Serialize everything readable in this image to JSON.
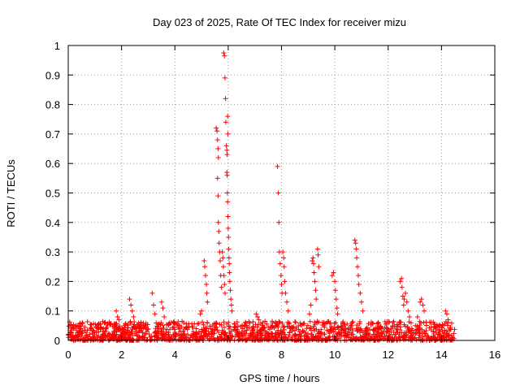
{
  "chart_data": {
    "type": "scatter",
    "title": "Day 023 of 2025, Rate Of TEC Index for receiver mizu",
    "xlabel": "GPS time / hours",
    "ylabel": "ROTI / TECUs",
    "xlim": [
      0,
      16
    ],
    "ylim": [
      0,
      1
    ],
    "x_ticks": [
      0,
      2,
      4,
      6,
      8,
      10,
      12,
      14,
      16
    ],
    "x_tick_labels": [
      "0",
      "2",
      "4",
      "6",
      "8",
      "10",
      "12",
      "14",
      "16"
    ],
    "y_ticks": [
      0,
      0.1,
      0.2,
      0.3,
      0.4,
      0.5,
      0.6,
      0.7,
      0.8,
      0.9,
      1
    ],
    "y_tick_labels": [
      "0",
      "0.1",
      "0.2",
      "0.3",
      "0.4",
      "0.5",
      "0.6",
      "0.7",
      "0.8",
      "0.9",
      "1"
    ],
    "grid": true,
    "marker": "+",
    "marker_color": "#ff0000",
    "data_extent_hours": [
      0,
      14.5
    ],
    "series": [
      {
        "name": "ROTI",
        "points": [
          [
            5.55,
            0.72
          ],
          [
            5.58,
            0.71
          ],
          [
            5.6,
            0.68
          ],
          [
            5.62,
            0.65
          ],
          [
            5.63,
            0.62
          ],
          [
            5.6,
            0.55
          ],
          [
            5.62,
            0.49
          ],
          [
            5.63,
            0.4
          ],
          [
            5.65,
            0.37
          ],
          [
            5.66,
            0.33
          ],
          [
            5.68,
            0.3
          ],
          [
            5.7,
            0.27
          ],
          [
            5.72,
            0.22
          ],
          [
            5.75,
            0.18
          ],
          [
            5.83,
            0.975
          ],
          [
            5.86,
            0.965
          ],
          [
            5.88,
            0.89
          ],
          [
            5.9,
            0.82
          ],
          [
            5.91,
            0.74
          ],
          [
            5.93,
            0.66
          ],
          [
            5.95,
            0.645
          ],
          [
            5.96,
            0.63
          ],
          [
            5.98,
            0.76
          ],
          [
            5.99,
            0.7
          ],
          [
            5.95,
            0.57
          ],
          [
            5.96,
            0.56
          ],
          [
            5.97,
            0.5
          ],
          [
            5.98,
            0.47
          ],
          [
            5.99,
            0.42
          ],
          [
            6.0,
            0.38
          ],
          [
            6.01,
            0.35
          ],
          [
            6.02,
            0.31
          ],
          [
            6.03,
            0.28
          ],
          [
            6.04,
            0.26
          ],
          [
            6.05,
            0.23
          ],
          [
            6.06,
            0.2
          ],
          [
            6.08,
            0.17
          ],
          [
            6.1,
            0.14
          ],
          [
            6.12,
            0.12
          ],
          [
            6.14,
            0.1
          ],
          [
            5.78,
            0.3
          ],
          [
            5.8,
            0.28
          ],
          [
            5.82,
            0.25
          ],
          [
            5.84,
            0.22
          ],
          [
            5.86,
            0.19
          ],
          [
            5.88,
            0.16
          ],
          [
            5.1,
            0.27
          ],
          [
            5.12,
            0.25
          ],
          [
            5.15,
            0.22
          ],
          [
            5.18,
            0.19
          ],
          [
            5.2,
            0.16
          ],
          [
            5.22,
            0.13
          ],
          [
            5.0,
            0.1
          ],
          [
            4.95,
            0.09
          ],
          [
            7.85,
            0.59
          ],
          [
            7.88,
            0.5
          ],
          [
            7.9,
            0.4
          ],
          [
            7.92,
            0.3
          ],
          [
            7.95,
            0.26
          ],
          [
            7.98,
            0.22
          ],
          [
            8.0,
            0.19
          ],
          [
            8.02,
            0.16
          ],
          [
            8.05,
            0.3
          ],
          [
            8.08,
            0.28
          ],
          [
            8.1,
            0.25
          ],
          [
            8.12,
            0.2
          ],
          [
            8.15,
            0.16
          ],
          [
            8.2,
            0.13
          ],
          [
            8.25,
            0.1
          ],
          [
            9.15,
            0.27
          ],
          [
            9.18,
            0.28
          ],
          [
            9.2,
            0.26
          ],
          [
            9.22,
            0.23
          ],
          [
            9.25,
            0.2
          ],
          [
            9.28,
            0.17
          ],
          [
            9.3,
            0.14
          ],
          [
            9.35,
            0.31
          ],
          [
            9.37,
            0.29
          ],
          [
            9.4,
            0.25
          ],
          [
            9.1,
            0.12
          ],
          [
            9.05,
            0.09
          ],
          [
            9.9,
            0.22
          ],
          [
            9.95,
            0.23
          ],
          [
            10.0,
            0.2
          ],
          [
            10.02,
            0.17
          ],
          [
            10.05,
            0.14
          ],
          [
            10.08,
            0.11
          ],
          [
            10.1,
            0.09
          ],
          [
            10.75,
            0.34
          ],
          [
            10.78,
            0.33
          ],
          [
            10.8,
            0.31
          ],
          [
            10.82,
            0.28
          ],
          [
            10.85,
            0.25
          ],
          [
            10.88,
            0.22
          ],
          [
            10.9,
            0.19
          ],
          [
            10.95,
            0.16
          ],
          [
            11.0,
            0.13
          ],
          [
            11.05,
            0.1
          ],
          [
            12.45,
            0.2
          ],
          [
            12.5,
            0.21
          ],
          [
            12.52,
            0.18
          ],
          [
            12.55,
            0.15
          ],
          [
            12.58,
            0.12
          ],
          [
            12.6,
            0.14
          ],
          [
            12.65,
            0.16
          ],
          [
            12.7,
            0.13
          ],
          [
            12.75,
            0.1
          ],
          [
            12.8,
            0.08
          ],
          [
            13.2,
            0.13
          ],
          [
            13.25,
            0.14
          ],
          [
            13.3,
            0.12
          ],
          [
            13.35,
            0.1
          ],
          [
            13.1,
            0.08
          ],
          [
            14.15,
            0.1
          ],
          [
            14.2,
            0.09
          ],
          [
            14.25,
            0.07
          ],
          [
            3.15,
            0.16
          ],
          [
            3.2,
            0.12
          ],
          [
            3.25,
            0.09
          ],
          [
            3.5,
            0.13
          ],
          [
            3.55,
            0.11
          ],
          [
            3.6,
            0.08
          ],
          [
            2.3,
            0.14
          ],
          [
            2.35,
            0.12
          ],
          [
            2.4,
            0.1
          ],
          [
            2.45,
            0.08
          ],
          [
            1.8,
            0.1
          ],
          [
            1.85,
            0.08
          ],
          [
            1.9,
            0.07
          ],
          [
            7.05,
            0.09
          ],
          [
            7.1,
            0.08
          ],
          [
            7.15,
            0.07
          ]
        ]
      }
    ]
  }
}
